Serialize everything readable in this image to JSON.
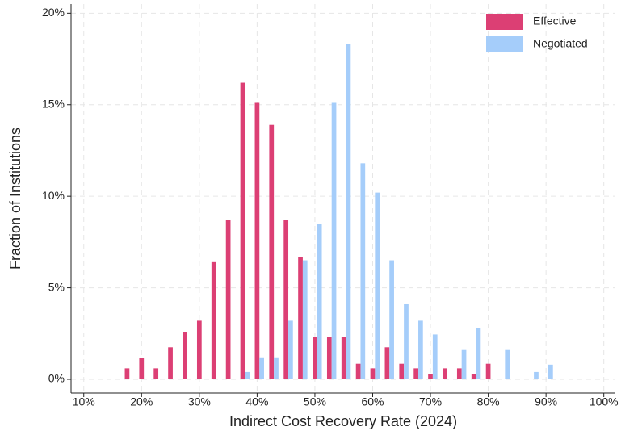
{
  "chart_data": {
    "type": "bar",
    "x_label": "Indirect Cost Recovery Rate (2024)",
    "y_label": "Fraction of Institutions",
    "x": [
      17.5,
      20,
      22.5,
      25,
      27.5,
      30,
      32.5,
      35,
      37.5,
      40,
      42.5,
      45,
      47.5,
      50,
      52.5,
      55,
      57.5,
      60,
      62.5,
      65,
      67.5,
      70,
      72.5,
      75,
      77.5,
      80,
      82.5,
      85,
      87.5,
      90
    ],
    "series": [
      {
        "name": "Effective",
        "color": "#dc3f74",
        "values": [
          0.6,
          1.15,
          0.6,
          1.75,
          2.6,
          3.2,
          6.4,
          8.7,
          16.2,
          15.1,
          13.9,
          8.7,
          6.7,
          2.3,
          2.3,
          2.3,
          0.85,
          0.6,
          1.75,
          0.85,
          0.6,
          0.3,
          0.6,
          0.6,
          0.3,
          0.85,
          0,
          0,
          0,
          0
        ]
      },
      {
        "name": "Negotiated",
        "color": "#a5cdfa",
        "values": [
          0,
          0,
          0,
          0,
          0,
          0,
          0,
          0,
          0.4,
          1.2,
          1.2,
          3.2,
          6.5,
          8.5,
          15.1,
          18.3,
          11.8,
          10.2,
          6.5,
          4.1,
          3.2,
          2.45,
          0,
          1.6,
          2.8,
          0,
          1.6,
          0,
          0.4,
          0.8
        ]
      }
    ],
    "xlim": [
      7.8,
      102
    ],
    "ylim": [
      -0.75,
      20.5
    ],
    "xticks": [
      {
        "value": 10,
        "label": "10%"
      },
      {
        "value": 20,
        "label": "20%"
      },
      {
        "value": 30,
        "label": "30%"
      },
      {
        "value": 40,
        "label": "40%"
      },
      {
        "value": 50,
        "label": "50%"
      },
      {
        "value": 60,
        "label": "60%"
      },
      {
        "value": 70,
        "label": "70%"
      },
      {
        "value": 80,
        "label": "80%"
      },
      {
        "value": 90,
        "label": "90%"
      },
      {
        "value": 100,
        "label": "100%"
      }
    ],
    "yticks": [
      {
        "value": 0,
        "label": "0%"
      },
      {
        "value": 5,
        "label": "5%"
      },
      {
        "value": 10,
        "label": "10%"
      },
      {
        "value": 15,
        "label": "15%"
      },
      {
        "value": 20,
        "label": "20%"
      }
    ],
    "grid": true,
    "legend": "top-right"
  }
}
